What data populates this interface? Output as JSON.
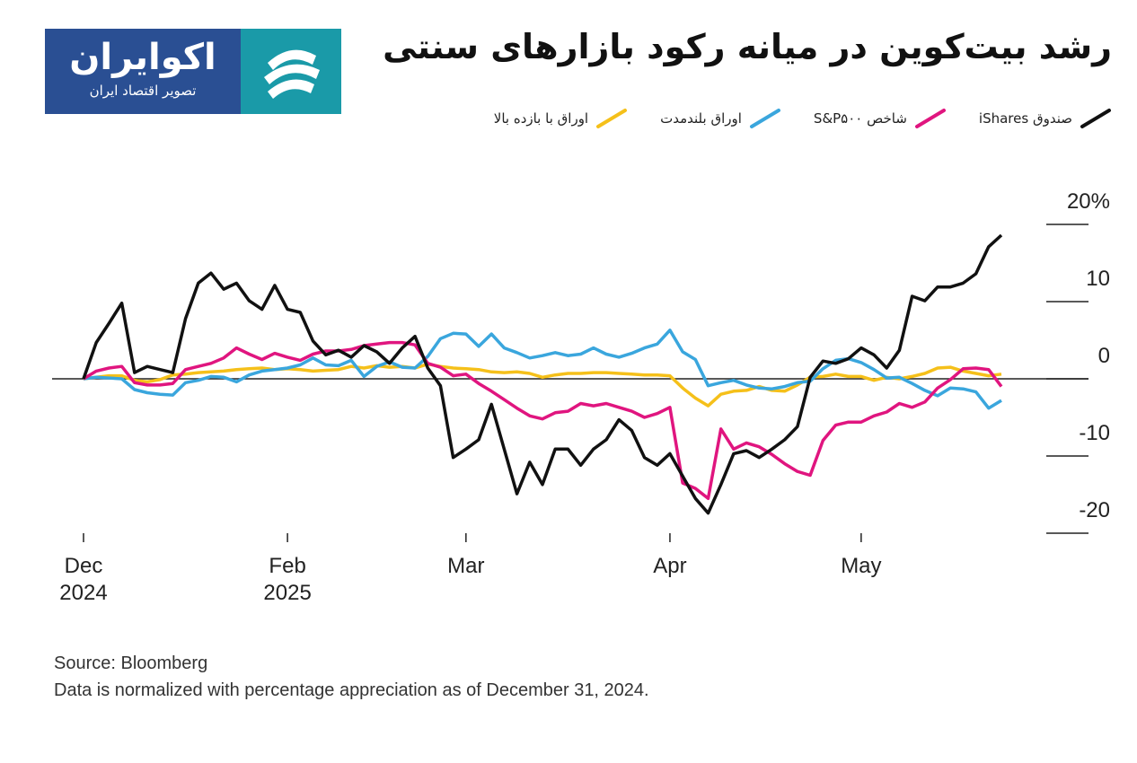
{
  "logo": {
    "name": "اکوایران",
    "tagline": "تصویر اقتصاد ایران"
  },
  "chart_data": {
    "type": "line",
    "title": "رشد بیت‌کوین در میانه رکود بازارهای سنتی",
    "source": "Source: Bloomberg",
    "note": "Data is normalized with percentage appreciation as of December 31, 2024.",
    "categories": [
      "Dec\n2024",
      null,
      null,
      null,
      null,
      null,
      null,
      null,
      null,
      null,
      null,
      null,
      null,
      null,
      null,
      null,
      "Feb\n2025",
      null,
      null,
      null,
      null,
      null,
      null,
      null,
      null,
      null,
      null,
      null,
      null,
      null,
      "Mar",
      null,
      null,
      null,
      null,
      null,
      null,
      null,
      null,
      null,
      null,
      null,
      null,
      null,
      null,
      null,
      "Apr",
      null,
      null,
      null,
      null,
      null,
      null,
      null,
      null,
      null,
      null,
      null,
      null,
      null,
      null,
      "May",
      null,
      null,
      null,
      null,
      null,
      null,
      null,
      null,
      null,
      null,
      null
    ],
    "ylim": [
      -20,
      20
    ],
    "yticks": [
      {
        "value": 20,
        "label": "20%"
      },
      10,
      0,
      -10,
      -20
    ],
    "legend": "top-right",
    "series": [
      {
        "name": "صندوق iShares",
        "color": "#111111",
        "values": [
          0,
          4.7,
          7.2,
          9.8,
          0.8,
          1.6,
          1.2,
          0.8,
          7.8,
          12.4,
          13.7,
          11.6,
          12.4,
          10.1,
          9.0,
          12.1,
          9.0,
          8.6,
          4.9,
          3.1,
          3.7,
          2.8,
          4.3,
          3.5,
          2.0,
          4.0,
          5.5,
          1.4,
          -0.9,
          -10.2,
          -9.1,
          -7.9,
          -3.3,
          -9.1,
          -14.9,
          -10.8,
          -13.7,
          -9.1,
          -9.1,
          -11.2,
          -9.1,
          -7.9,
          -5.3,
          -6.7,
          -10.2,
          -11.2,
          -9.7,
          -12.6,
          -15.5,
          -17.4,
          -13.7,
          -9.7,
          -9.3,
          -10.2,
          -9.1,
          -7.9,
          -6.2,
          0.2,
          2.3,
          2.0,
          2.6,
          4.0,
          3.1,
          1.4,
          3.7,
          10.7,
          10.1,
          11.9,
          11.9,
          12.4,
          13.6,
          17.1,
          18.6
        ]
      },
      {
        "name": "شاخص S&P۵۰۰",
        "color": "#e0157f",
        "values": [
          0,
          1.0,
          1.4,
          1.6,
          -0.5,
          -0.8,
          -0.8,
          -0.6,
          1.2,
          1.6,
          2.0,
          2.7,
          4.0,
          3.2,
          2.5,
          3.3,
          2.8,
          2.4,
          3.2,
          3.6,
          3.6,
          3.8,
          4.3,
          4.5,
          4.7,
          4.7,
          4.4,
          2.0,
          1.5,
          0.4,
          0.6,
          -0.6,
          -1.6,
          -2.7,
          -3.8,
          -4.8,
          -5.2,
          -4.4,
          -4.2,
          -3.2,
          -3.5,
          -3.2,
          -3.7,
          -4.2,
          -5.0,
          -4.5,
          -3.7,
          -13.5,
          -14.2,
          -15.5,
          -6.5,
          -9.1,
          -8.3,
          -8.8,
          -9.8,
          -11.0,
          -12.0,
          -12.5,
          -8.0,
          -6.0,
          -5.6,
          -5.6,
          -4.8,
          -4.3,
          -3.2,
          -3.7,
          -3.0,
          -1.2,
          -0.1,
          1.3,
          1.4,
          1.2,
          -1.0
        ]
      },
      {
        "name": "اوراق بلندمدت",
        "color": "#3aa6dd",
        "values": [
          0,
          0.2,
          0.1,
          0.0,
          -1.4,
          -1.8,
          -2.0,
          -2.1,
          -0.5,
          -0.2,
          0.3,
          0.2,
          -0.4,
          0.5,
          1.0,
          1.2,
          1.4,
          1.8,
          2.7,
          1.8,
          1.7,
          2.4,
          0.3,
          1.6,
          2.2,
          1.5,
          1.4,
          2.9,
          5.2,
          5.9,
          5.8,
          4.2,
          5.8,
          4.0,
          3.4,
          2.7,
          3.0,
          3.4,
          3.0,
          3.2,
          4.0,
          3.2,
          2.8,
          3.3,
          4.0,
          4.5,
          6.3,
          3.5,
          2.5,
          -0.9,
          -0.5,
          -0.2,
          -0.8,
          -1.2,
          -1.3,
          -1.0,
          -0.5,
          -0.3,
          1.3,
          2.4,
          2.6,
          2.1,
          1.2,
          0.1,
          0.2,
          -0.6,
          -1.5,
          -2.2,
          -1.2,
          -1.3,
          -1.7,
          -3.8,
          -2.8
        ]
      },
      {
        "name": "اوراق با بازده بالا",
        "color": "#f5c01a",
        "values": [
          0,
          0.2,
          0.4,
          0.4,
          -0.2,
          -0.4,
          -0.1,
          0.5,
          0.6,
          0.8,
          0.9,
          1.0,
          1.2,
          1.3,
          1.4,
          1.2,
          1.3,
          1.2,
          1.0,
          1.1,
          1.2,
          1.6,
          1.4,
          1.7,
          1.5,
          1.6,
          1.4,
          1.9,
          1.6,
          1.4,
          1.3,
          1.2,
          0.9,
          0.8,
          0.9,
          0.7,
          0.2,
          0.5,
          0.7,
          0.7,
          0.8,
          0.8,
          0.7,
          0.6,
          0.5,
          0.5,
          0.4,
          -1.2,
          -2.5,
          -3.5,
          -2.0,
          -1.6,
          -1.5,
          -1.0,
          -1.5,
          -1.6,
          -0.8,
          0.2,
          0.3,
          0.6,
          0.3,
          0.3,
          -0.2,
          0.2,
          0.0,
          0.3,
          0.7,
          1.4,
          1.5,
          1.0,
          0.7,
          0.4,
          0.6
        ]
      }
    ]
  }
}
